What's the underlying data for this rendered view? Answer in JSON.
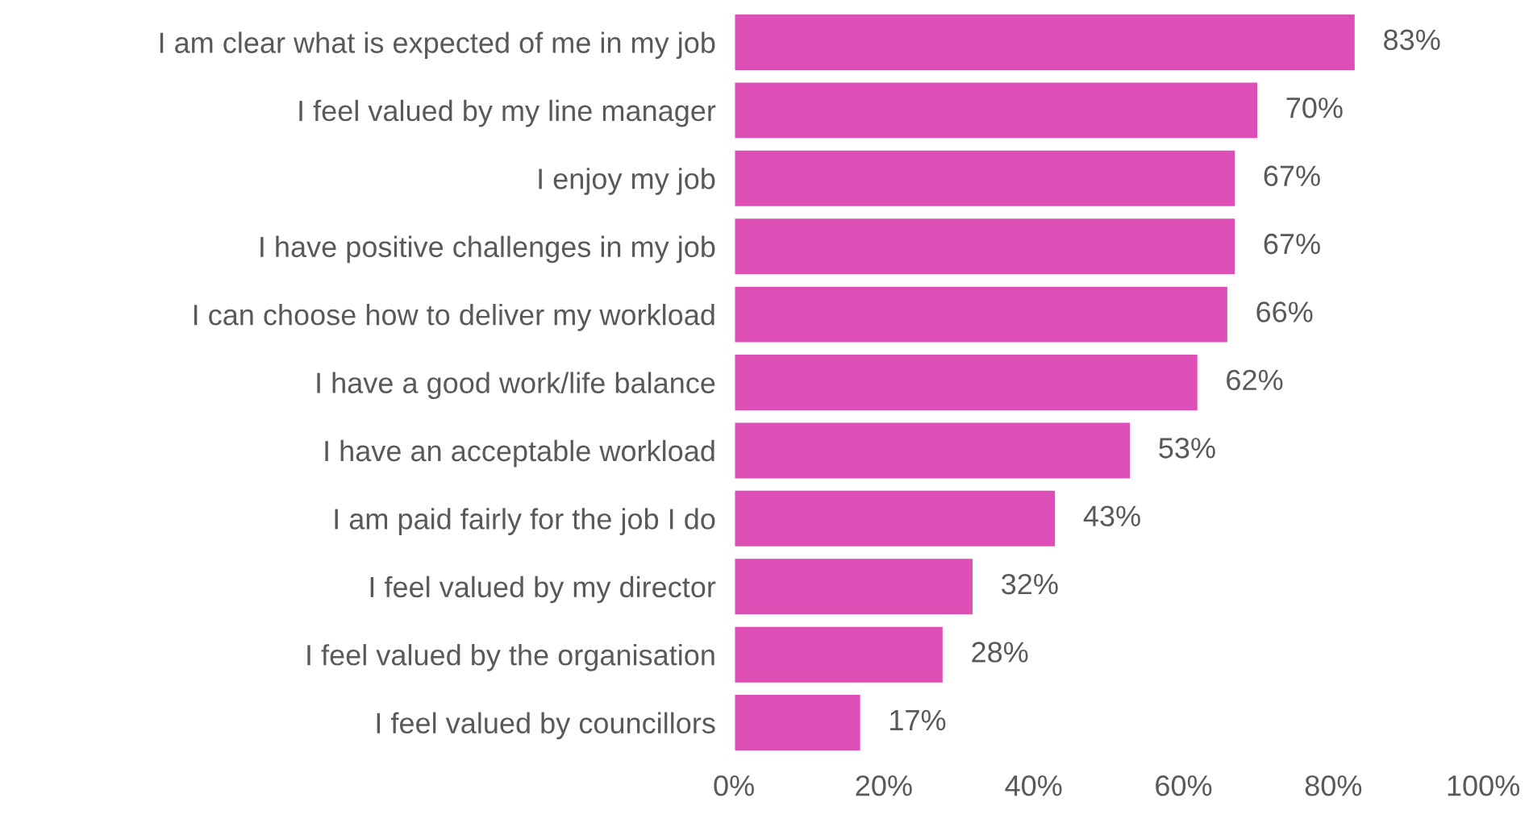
{
  "chart_data": {
    "type": "bar",
    "orientation": "horizontal",
    "categories": [
      "I am clear what is expected of me in my job",
      "I feel valued by my line manager",
      "I enjoy my job",
      "I have positive challenges in my job",
      "I can choose how to deliver my workload",
      "I have a good work/life balance",
      "I have an acceptable workload",
      "I am paid fairly for the job I do",
      "I feel valued by my director",
      "I feel valued by the organisation",
      "I feel valued by councillors"
    ],
    "values": [
      83,
      70,
      67,
      67,
      66,
      62,
      53,
      43,
      32,
      28,
      17
    ],
    "value_labels": [
      "83%",
      "70%",
      "67%",
      "67%",
      "66%",
      "62%",
      "53%",
      "43%",
      "32%",
      "28%",
      "17%"
    ],
    "color": "#dd4fb6",
    "xlim": [
      0,
      100
    ],
    "xticks": [
      {
        "value": 0,
        "label": "0%"
      },
      {
        "value": 20,
        "label": "20%"
      },
      {
        "value": 40,
        "label": "40%"
      },
      {
        "value": 60,
        "label": "60%"
      },
      {
        "value": 80,
        "label": "80%"
      },
      {
        "value": 100,
        "label": "100%"
      }
    ],
    "grid": false,
    "legend": false
  }
}
